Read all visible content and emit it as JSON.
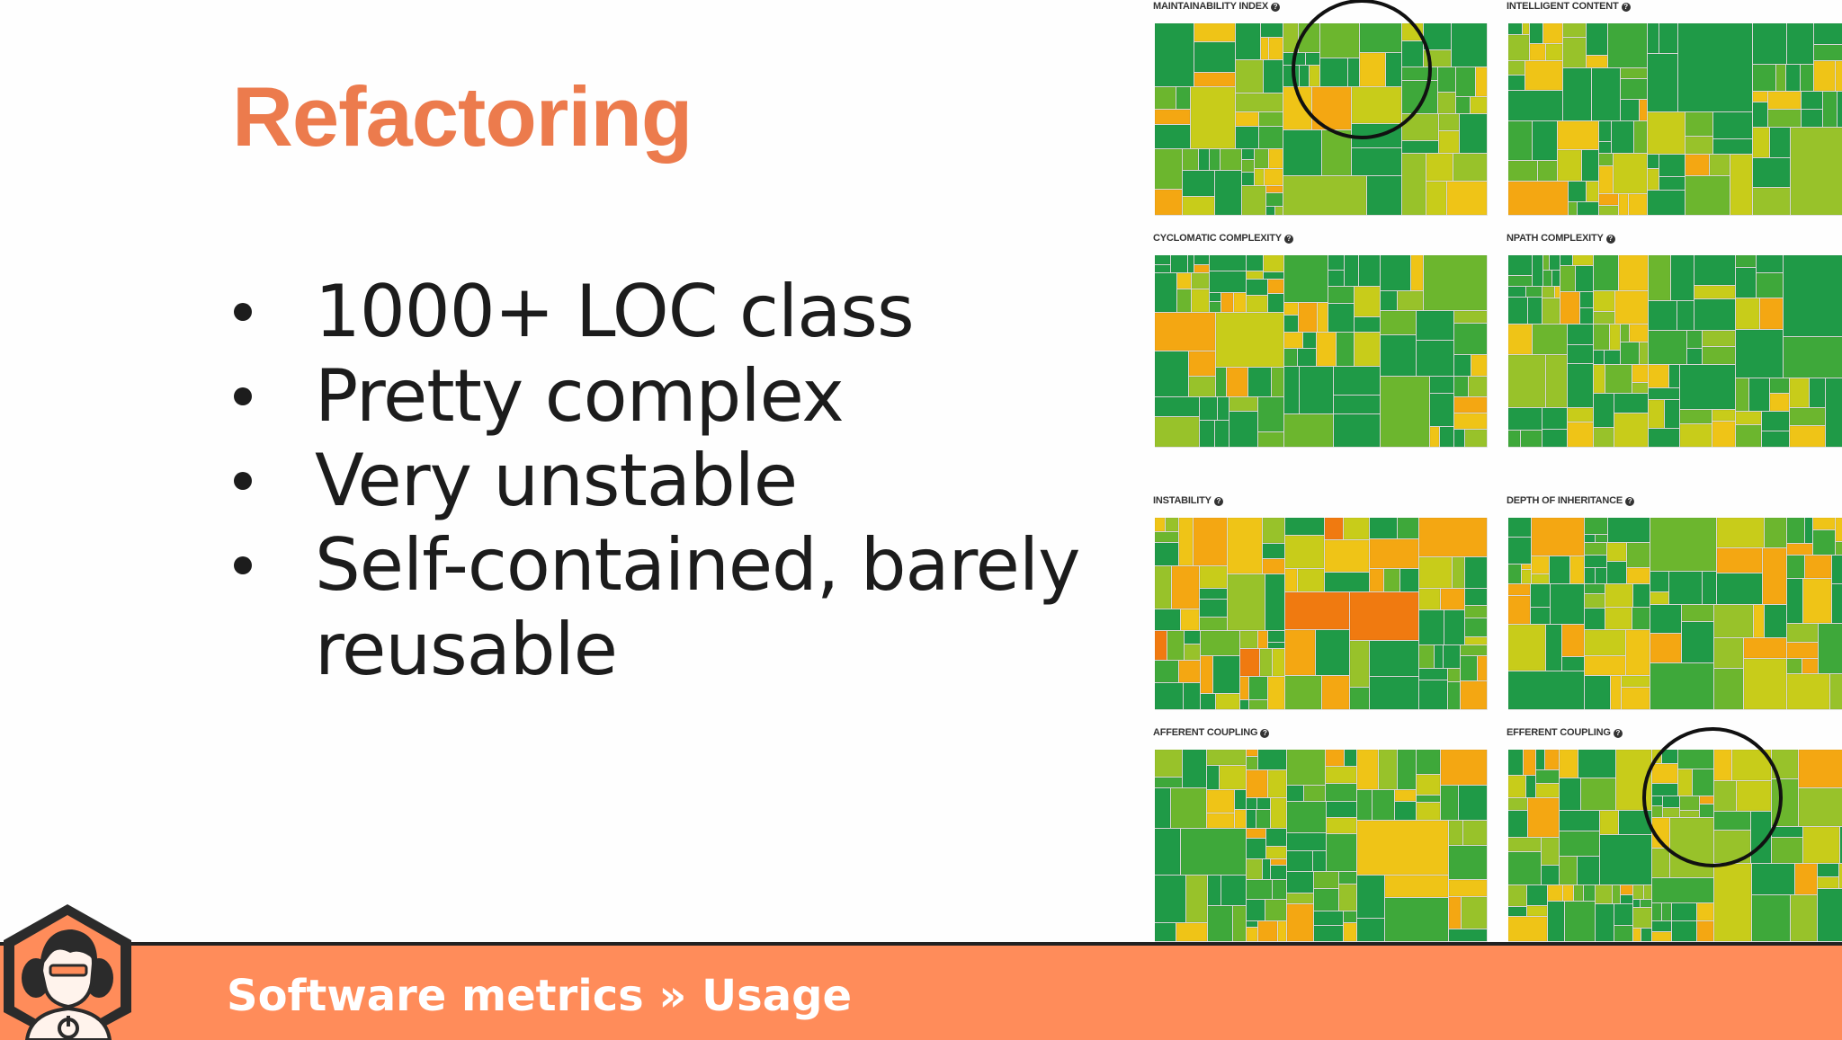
{
  "slide": {
    "title": "Refactoring",
    "bullets": [
      "1000+ LOC class",
      "Pretty complex",
      "Very unstable",
      "Self-contained, barely reusable"
    ]
  },
  "panels": [
    {
      "label": "MAINTAINABILITY INDEX",
      "highlighted": true
    },
    {
      "label": "INTELLIGENT CONTENT",
      "highlighted": false
    },
    {
      "label": "CYCLOMATIC COMPLEXITY",
      "highlighted": false
    },
    {
      "label": "NPATH COMPLEXITY",
      "highlighted": false
    },
    {
      "label": "INSTABILITY",
      "highlighted": false
    },
    {
      "label": "DEPTH OF INHERITANCE",
      "highlighted": false
    },
    {
      "label": "AFFERENT COUPLING",
      "highlighted": false
    },
    {
      "label": "EFFERENT COUPLING",
      "highlighted": true
    }
  ],
  "info_icon": "question-circle-icon",
  "footer": {
    "breadcrumb": "Software metrics » Usage",
    "logo_icon": "hexagon-presenter-logo-icon"
  },
  "colors": {
    "title": "#ec7b4d",
    "footer_bg": "#ff8c5a",
    "treemap_palette": [
      "#ee3322",
      "#f07a10",
      "#f4a712",
      "#efc417",
      "#c8cc1a",
      "#98c22a",
      "#6cb62e",
      "#3ea83a",
      "#1f9a47"
    ]
  }
}
